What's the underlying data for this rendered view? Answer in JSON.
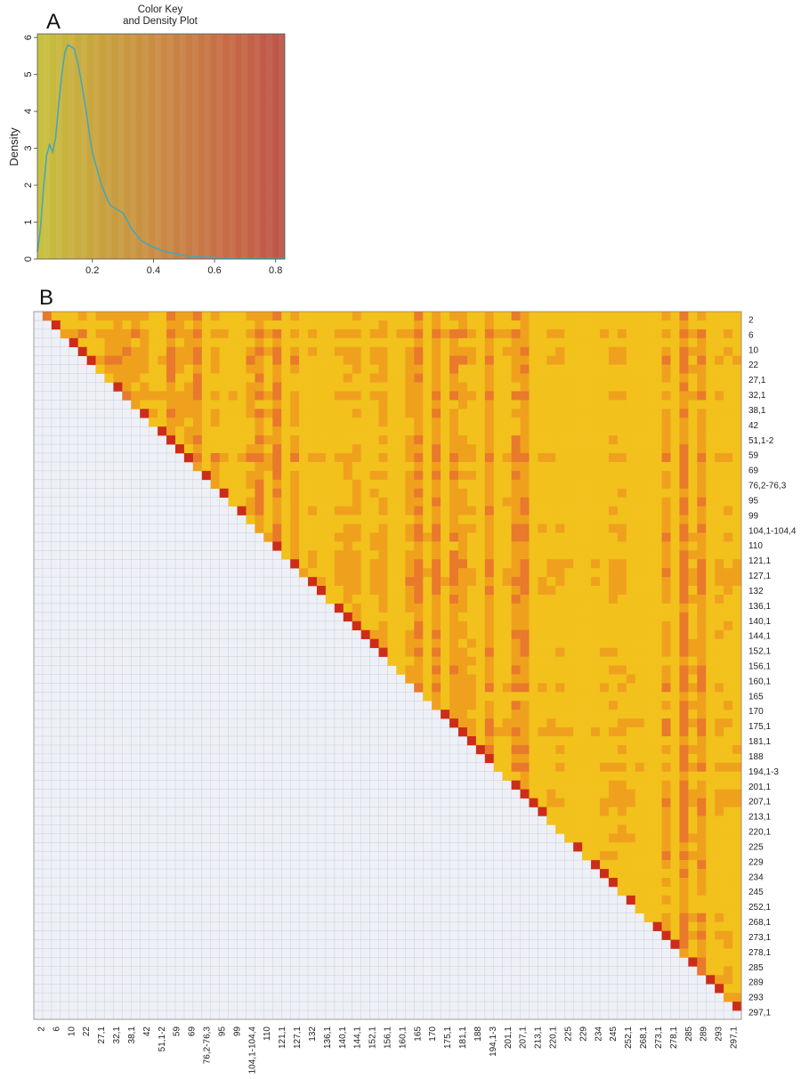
{
  "panels": {
    "a_label": "A",
    "b_label": "B"
  },
  "chart_data": [
    {
      "type": "area",
      "title": "Color Key\nand Density Plot",
      "xlabel": "",
      "ylabel": "Density",
      "xlim": [
        0.02,
        0.83
      ],
      "ylim": [
        0,
        6.1
      ],
      "x_ticks": [
        "0.2",
        "0.4",
        "0.6",
        "0.8"
      ],
      "y_ticks": [
        "0",
        "1",
        "2",
        "3",
        "4",
        "5",
        "6"
      ],
      "color_scale": [
        "#c6c23e",
        "#c9a23e",
        "#c98a44",
        "#c76d46",
        "#bd5448"
      ],
      "line_color": "#4aa6b5",
      "series": [
        {
          "x": [
            0.02,
            0.03,
            0.04,
            0.05,
            0.06,
            0.07,
            0.08,
            0.09,
            0.1,
            0.11,
            0.12,
            0.13,
            0.14,
            0.15,
            0.16,
            0.17,
            0.18,
            0.19,
            0.2,
            0.21,
            0.22,
            0.23,
            0.24,
            0.25,
            0.26,
            0.27,
            0.28,
            0.29,
            0.3,
            0.31,
            0.32,
            0.33,
            0.34,
            0.35,
            0.36,
            0.38,
            0.4,
            0.42,
            0.44,
            0.46,
            0.48,
            0.5,
            0.52,
            0.55,
            0.58,
            0.6,
            0.63,
            0.66,
            0.7,
            0.75,
            0.8,
            0.83
          ],
          "values": [
            0.2,
            0.8,
            1.9,
            2.8,
            3.1,
            2.9,
            3.3,
            4.2,
            5.0,
            5.6,
            5.8,
            5.75,
            5.7,
            5.4,
            5.0,
            4.5,
            4.0,
            3.4,
            2.9,
            2.6,
            2.3,
            2.0,
            1.8,
            1.6,
            1.45,
            1.4,
            1.35,
            1.3,
            1.25,
            1.1,
            0.95,
            0.8,
            0.7,
            0.6,
            0.5,
            0.4,
            0.32,
            0.26,
            0.2,
            0.16,
            0.13,
            0.1,
            0.08,
            0.06,
            0.05,
            0.04,
            0.03,
            0.02,
            0.015,
            0.01,
            0.01,
            0.01
          ]
        }
      ]
    },
    {
      "type": "heatmap",
      "title": "",
      "triangle": "upper",
      "cell_count": 80,
      "lower_color": "#eef0f6",
      "colors": [
        "#f2c11c",
        "#efa11d",
        "#e9792b",
        "#cd2d18"
      ],
      "labels": [
        "2",
        "6",
        "10",
        "22",
        "27,1",
        "32,1",
        "38,1",
        "42",
        "51,1-2",
        "59",
        "69",
        "76,2-76,3",
        "95",
        "99",
        "104,1-104,4",
        "110",
        "121,1",
        "127,1",
        "132",
        "136,1",
        "140,1",
        "144,1",
        "152,1",
        "156,1",
        "160,1",
        "165",
        "170",
        "175,1",
        "181,1",
        "188",
        "194,1-3",
        "201,1",
        "207,1",
        "213,1",
        "220,1",
        "225",
        "229",
        "234",
        "245",
        "252,1",
        "268,1",
        "273,1",
        "278,1",
        "285",
        "289",
        "293",
        "297,1"
      ]
    }
  ]
}
